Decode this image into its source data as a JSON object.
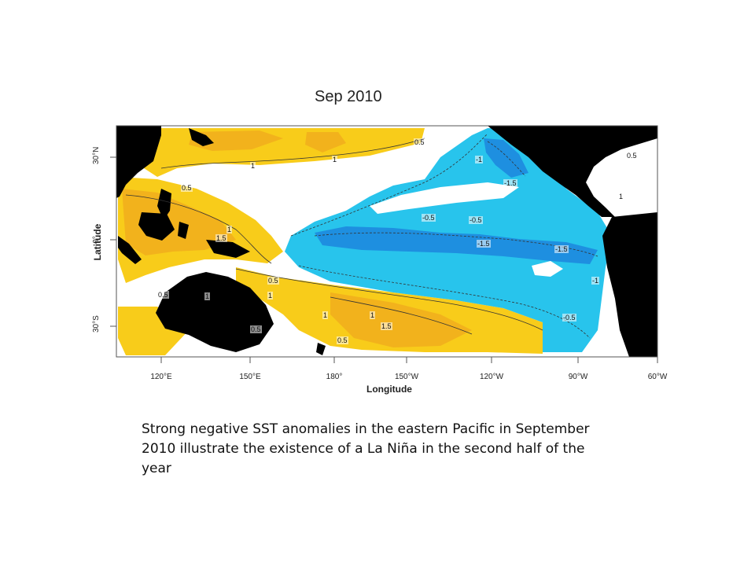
{
  "slide": {
    "caption": "Strong negative SST anomalies in the eastern Pacific in September 2010 illustrate the existence of a La Niña in the second half of the year"
  },
  "map": {
    "title": "Sep 2010",
    "xlabel": "Longitude",
    "ylabel": "Latitude",
    "lat_ticks": [
      "30°N",
      "0°",
      "30°S"
    ],
    "lon_ticks": [
      "120°E",
      "150°E",
      "180°",
      "150°W",
      "120°W",
      "90°W",
      "60°W"
    ],
    "contour_labels": [
      "0.5",
      "1",
      "1",
      "0.5",
      "1",
      "1.5",
      "1",
      "0.5",
      "1",
      "0.5",
      "1",
      "1",
      "1.5",
      "0.5",
      "0.5",
      "-1",
      "-1.5",
      "-0.5",
      "-0.5",
      "-1.5",
      "-1.5",
      "-1",
      "-0.5",
      "0.5",
      "1"
    ],
    "colors": {
      "land": "#000000",
      "warm_strong": "#f2b21c",
      "warm": "#f8cc1a",
      "neutral": "#ffffff",
      "cool": "#28c4ec",
      "cool_strong": "#1e8fe0"
    }
  }
}
